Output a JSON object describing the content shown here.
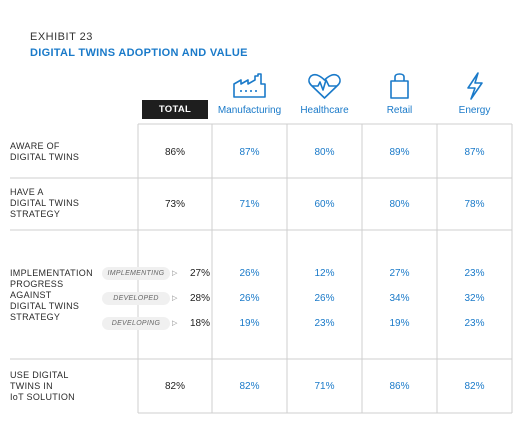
{
  "exhibit_label": "EXHIBIT 23",
  "title": "DIGITAL TWINS ADOPTION AND VALUE",
  "colors": {
    "accent": "#1a7ac9",
    "total_bg": "#1e1e1e",
    "grid": "#d0d0d0"
  },
  "columns": [
    {
      "key": "total",
      "label": "TOTAL",
      "icon": ""
    },
    {
      "key": "manufacturing",
      "label": "Manufacturing",
      "icon": "factory-icon"
    },
    {
      "key": "healthcare",
      "label": "Healthcare",
      "icon": "heart-pulse-icon"
    },
    {
      "key": "retail",
      "label": "Retail",
      "icon": "shopping-bag-icon"
    },
    {
      "key": "energy",
      "label": "Energy",
      "icon": "lightning-icon"
    }
  ],
  "rows": [
    {
      "label": "AWARE OF\nDIGITAL TWINS"
    },
    {
      "label": "HAVE A\nDIGITAL TWINS\nSTRATEGY"
    },
    {
      "label": "IMPLEMENTATION\nPROGRESS\nAGAINST\nDIGITAL TWINS\nSTRATEGY"
    },
    {
      "label": "USE DIGITAL\nTWINS IN\nIoT SOLUTION"
    }
  ],
  "sublabels": [
    "IMPLEMENTING",
    "DEVELOPED",
    "DEVELOPING"
  ],
  "chart_data": {
    "type": "table",
    "title": "DIGITAL TWINS ADOPTION AND VALUE",
    "columns": [
      "TOTAL",
      "Manufacturing",
      "Healthcare",
      "Retail",
      "Energy"
    ],
    "rows": [
      {
        "label": "AWARE OF DIGITAL TWINS",
        "values": [
          "86%",
          "87%",
          "80%",
          "89%",
          "87%"
        ]
      },
      {
        "label": "HAVE A DIGITAL TWINS STRATEGY",
        "values": [
          "73%",
          "71%",
          "60%",
          "80%",
          "78%"
        ]
      },
      {
        "label": "IMPLEMENTATION PROGRESS AGAINST DIGITAL TWINS STRATEGY",
        "sub": "IMPLEMENTING",
        "values": [
          "27%",
          "26%",
          "12%",
          "27%",
          "23%"
        ]
      },
      {
        "label": "IMPLEMENTATION PROGRESS AGAINST DIGITAL TWINS STRATEGY",
        "sub": "DEVELOPED",
        "values": [
          "28%",
          "26%",
          "26%",
          "34%",
          "32%"
        ]
      },
      {
        "label": "IMPLEMENTATION PROGRESS AGAINST DIGITAL TWINS STRATEGY",
        "sub": "DEVELOPING",
        "values": [
          "18%",
          "19%",
          "23%",
          "19%",
          "23%"
        ]
      },
      {
        "label": "USE DIGITAL TWINS IN IoT SOLUTION",
        "values": [
          "82%",
          "82%",
          "71%",
          "86%",
          "82%"
        ]
      }
    ]
  }
}
